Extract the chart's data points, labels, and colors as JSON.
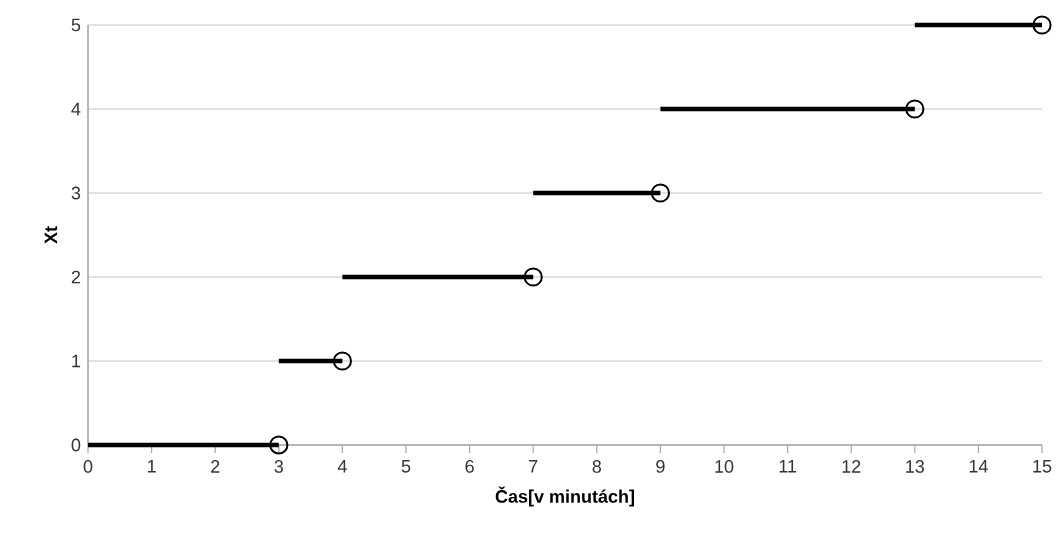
{
  "chart_data": {
    "type": "line",
    "xlabel": "Čas[v minutách]",
    "ylabel": "Xt",
    "series": [
      {
        "color": "#000000",
        "marker": "none",
        "x": [
          0,
          3
        ],
        "values": [
          0,
          0
        ]
      },
      {
        "color": "#000000",
        "marker": "none",
        "x": [
          3,
          4
        ],
        "values": [
          1,
          1
        ]
      },
      {
        "color": "#000000",
        "marker": "none",
        "x": [
          4,
          7
        ],
        "values": [
          2,
          2
        ]
      },
      {
        "color": "#000000",
        "marker": "none",
        "x": [
          7,
          9
        ],
        "values": [
          3,
          3
        ]
      },
      {
        "color": "#000000",
        "marker": "none",
        "x": [
          9,
          13
        ],
        "values": [
          4,
          4
        ]
      },
      {
        "color": "#000000",
        "marker": "none",
        "x": [
          13,
          15
        ],
        "values": [
          5,
          5
        ]
      },
      {
        "type": "scatter",
        "color": "#000000",
        "marker": "circle",
        "x": [
          3,
          4,
          7,
          9,
          13,
          15
        ],
        "values": [
          0,
          1,
          2,
          3,
          4,
          5
        ]
      }
    ],
    "xlim": [
      0,
      15
    ],
    "ylim": [
      0,
      5
    ],
    "xticks": [
      0,
      1,
      2,
      3,
      4,
      5,
      6,
      7,
      8,
      9,
      10,
      11,
      12,
      13,
      14,
      15
    ],
    "yticks": [
      0,
      1,
      2,
      3,
      4,
      5
    ],
    "grid": "y"
  }
}
